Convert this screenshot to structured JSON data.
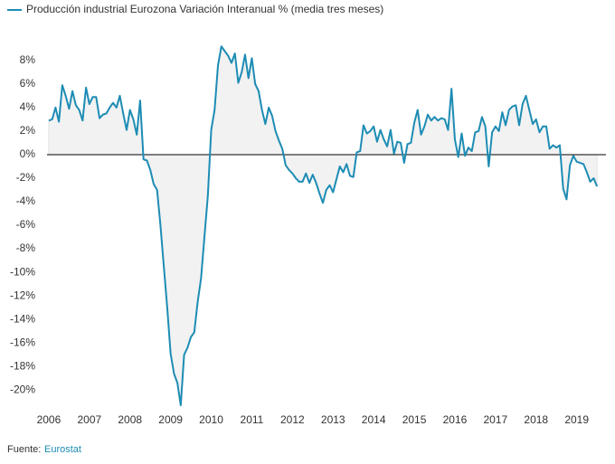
{
  "chart_data": {
    "type": "line",
    "series": [
      {
        "name": "Producción industrial Eurozona Variación Interanual % (media tres meses)",
        "color": "#1d8cb4",
        "values": [
          2.9,
          3.0,
          4.0,
          2.8,
          5.9,
          5.0,
          3.9,
          5.4,
          4.2,
          3.8,
          2.9,
          5.7,
          4.3,
          4.9,
          4.9,
          3.1,
          3.4,
          3.5,
          4.0,
          4.4,
          4.0,
          5.0,
          3.5,
          2.1,
          3.8,
          3.0,
          1.7,
          4.6,
          -0.4,
          -0.5,
          -1.3,
          -2.5,
          -3.0,
          -6.0,
          -9.5,
          -13.0,
          -16.9,
          -18.6,
          -19.4,
          -21.3,
          -17.0,
          -16.4,
          -15.5,
          -15.1,
          -12.5,
          -10.5,
          -7.0,
          -3.5,
          2.1,
          3.8,
          7.6,
          9.2,
          8.8,
          8.4,
          7.8,
          8.6,
          6.1,
          7.0,
          8.5,
          6.5,
          8.2,
          6.0,
          5.4,
          3.8,
          2.6,
          4.0,
          3.3,
          2.0,
          1.2,
          0.5,
          -0.9,
          -1.3,
          -1.6,
          -2.0,
          -2.3,
          -2.3,
          -1.6,
          -2.4,
          -1.7,
          -2.4,
          -3.3,
          -4.1,
          -3.0,
          -2.6,
          -3.2,
          -2.1,
          -1.0,
          -1.5,
          -0.8,
          -1.8,
          -1.9,
          0.2,
          0.3,
          2.5,
          1.8,
          2.0,
          2.4,
          1.1,
          2.1,
          1.3,
          0.7,
          2.1,
          0.1,
          1.1,
          1.0,
          -0.7,
          0.9,
          1.0,
          2.7,
          3.8,
          1.7,
          2.4,
          3.4,
          2.9,
          3.2,
          2.9,
          3.1,
          3.0,
          2.1,
          5.6,
          1.3,
          -0.2,
          1.8,
          -0.1,
          0.6,
          0.3,
          1.9,
          2.0,
          3.2,
          2.4,
          -1.0,
          1.9,
          2.4,
          2.0,
          3.6,
          2.5,
          3.8,
          4.1,
          4.2,
          2.5,
          4.3,
          5.0,
          3.8,
          2.6,
          3.0,
          1.9,
          2.4,
          2.4,
          0.5,
          0.8,
          0.6,
          0.8,
          -2.9,
          -3.8,
          -0.9,
          -0.1,
          -0.6,
          -0.7,
          -0.8,
          -1.5,
          -2.3,
          -2.0,
          -2.7
        ]
      }
    ],
    "x": [
      2006,
      2006.083,
      2006.167,
      2006.25,
      2006.333,
      2006.417,
      2006.5,
      2006.583,
      2006.667,
      2006.75,
      2006.833,
      2006.917,
      2007,
      2007.083,
      2007.167,
      2007.25,
      2007.333,
      2007.417,
      2007.5,
      2007.583,
      2007.667,
      2007.75,
      2007.833,
      2007.917,
      2008,
      2008.083,
      2008.167,
      2008.25,
      2008.333,
      2008.417,
      2008.5,
      2008.583,
      2008.667,
      2008.75,
      2008.833,
      2008.917,
      2009,
      2009.083,
      2009.167,
      2009.25,
      2009.333,
      2009.417,
      2009.5,
      2009.583,
      2009.667,
      2009.75,
      2009.833,
      2009.917,
      2010,
      2010.083,
      2010.167,
      2010.25,
      2010.333,
      2010.417,
      2010.5,
      2010.583,
      2010.667,
      2010.75,
      2010.833,
      2010.917,
      2011,
      2011.083,
      2011.167,
      2011.25,
      2011.333,
      2011.417,
      2011.5,
      2011.583,
      2011.667,
      2011.75,
      2011.833,
      2011.917,
      2012,
      2012.083,
      2012.167,
      2012.25,
      2012.333,
      2012.417,
      2012.5,
      2012.583,
      2012.667,
      2012.75,
      2012.833,
      2012.917,
      2013,
      2013.083,
      2013.167,
      2013.25,
      2013.333,
      2013.417,
      2013.5,
      2013.583,
      2013.667,
      2013.75,
      2013.833,
      2013.917,
      2014,
      2014.083,
      2014.167,
      2014.25,
      2014.333,
      2014.417,
      2014.5,
      2014.583,
      2014.667,
      2014.75,
      2014.833,
      2014.917,
      2015,
      2015.083,
      2015.167,
      2015.25,
      2015.333,
      2015.417,
      2015.5,
      2015.583,
      2015.667,
      2015.75,
      2015.833,
      2015.917,
      2016,
      2016.083,
      2016.167,
      2016.25,
      2016.333,
      2016.417,
      2016.5,
      2016.583,
      2016.667,
      2016.75,
      2016.833,
      2016.917,
      2017,
      2017.083,
      2017.167,
      2017.25,
      2017.333,
      2017.417,
      2017.5,
      2017.583,
      2017.667,
      2017.75,
      2017.833,
      2017.917,
      2018,
      2018.083,
      2018.167,
      2018.25,
      2018.333,
      2018.417,
      2018.5,
      2018.583,
      2018.667,
      2018.75,
      2018.833,
      2018.917,
      2019,
      2019.083,
      2019.167,
      2019.25,
      2019.333,
      2019.417,
      2019.5
    ],
    "xlim": [
      2005.69,
      2019.72
    ],
    "xticks": [
      2006,
      2007,
      2008,
      2009,
      2010,
      2011,
      2012,
      2013,
      2014,
      2015,
      2016,
      2017,
      2018,
      2019
    ],
    "ylim": [
      -21.6,
      9.3
    ],
    "yticks": [
      {
        "value": 8,
        "label": "8%"
      },
      {
        "value": 6,
        "label": "6%"
      },
      {
        "value": 4,
        "label": "4%"
      },
      {
        "value": 2,
        "label": "2%"
      },
      {
        "value": 0,
        "label": "0%"
      },
      {
        "value": -2,
        "label": "-2%"
      },
      {
        "value": -4,
        "label": "-4%"
      },
      {
        "value": -6,
        "label": "-6%"
      },
      {
        "value": -8,
        "label": "-8%"
      },
      {
        "value": -10,
        "label": "-10%"
      },
      {
        "value": -12,
        "label": "-12%"
      },
      {
        "value": -14,
        "label": "-14%"
      },
      {
        "value": -16,
        "label": "-16%"
      },
      {
        "value": -18,
        "label": "-18%"
      },
      {
        "value": -20,
        "label": "-20%"
      }
    ],
    "area_color": "#f2f2f2",
    "source_label": "Fuente:",
    "source": "Eurostat"
  }
}
